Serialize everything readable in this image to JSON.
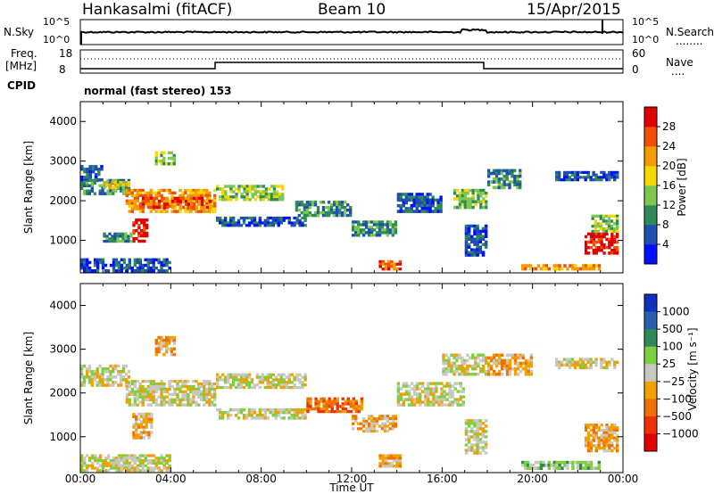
{
  "header": {
    "title": "Hankasalmi (fitACF)",
    "beam": "Beam 10",
    "date": "15/Apr/2015"
  },
  "strip_labels": {
    "nsky": "N.Sky",
    "nsearch": "N.Search",
    "freq_a": "Freq.",
    "freq_b": "[MHz]",
    "nave": "Nave",
    "cpid": "CPID",
    "cpid_text": "normal (fast stereo) 153",
    "dots": "........",
    "dots_short": "...."
  },
  "strip_ticks": {
    "nsky_left": [
      "10^5",
      "10^0"
    ],
    "nsky_right": [
      "10^5",
      "10^0"
    ],
    "freq_left": [
      "18",
      "8"
    ],
    "nave_right": [
      "60",
      "0"
    ]
  },
  "chart_data": [
    {
      "type": "heatmap",
      "panel": "power",
      "ylabel": "Slant Range [km]",
      "y_ticks": [
        1000,
        2000,
        3000,
        4000
      ],
      "ylim": [
        180,
        4500
      ],
      "colorbar_label": "Power [dB]",
      "colorbar_ticks": [
        "4",
        "8",
        "12",
        "16",
        "20",
        "24",
        "28"
      ],
      "colorbar_colors": [
        "#0010ff",
        "#1f4fb0",
        "#2e8b57",
        "#7ec850",
        "#f5d800",
        "#f59a00",
        "#f05000",
        "#e00000"
      ],
      "echo_bands": [
        {
          "x0": 0.0,
          "x1": 2.2,
          "y0": 2150,
          "y1": 2550,
          "level": 2
        },
        {
          "x0": 1.0,
          "x1": 2.2,
          "y0": 2300,
          "y1": 2500,
          "level": 4
        },
        {
          "x0": 2.0,
          "x1": 6.0,
          "y0": 1700,
          "y1": 2300,
          "level": 5
        },
        {
          "x0": 2.6,
          "x1": 5.8,
          "y0": 1800,
          "y1": 2100,
          "level": 6
        },
        {
          "x0": 2.3,
          "x1": 3.0,
          "y0": 950,
          "y1": 1550,
          "level": 7
        },
        {
          "x0": 1.0,
          "x1": 2.3,
          "y0": 950,
          "y1": 1200,
          "level": 2
        },
        {
          "x0": 0.0,
          "x1": 1.0,
          "y0": 2500,
          "y1": 2900,
          "level": 1
        },
        {
          "x0": 3.3,
          "x1": 4.2,
          "y0": 2900,
          "y1": 3250,
          "level": 3
        },
        {
          "x0": 6.0,
          "x1": 9.0,
          "y0": 2000,
          "y1": 2400,
          "level": 3
        },
        {
          "x0": 6.0,
          "x1": 10.0,
          "y0": 1350,
          "y1": 1600,
          "level": 1
        },
        {
          "x0": 9.5,
          "x1": 12.0,
          "y0": 1600,
          "y1": 2000,
          "level": 2
        },
        {
          "x0": 12.0,
          "x1": 14.0,
          "y0": 1100,
          "y1": 1500,
          "level": 2
        },
        {
          "x0": 13.2,
          "x1": 14.2,
          "y0": 250,
          "y1": 500,
          "level": 6
        },
        {
          "x0": 14.0,
          "x1": 16.0,
          "y0": 1700,
          "y1": 2200,
          "level": 1
        },
        {
          "x0": 16.5,
          "x1": 18.0,
          "y0": 1800,
          "y1": 2300,
          "level": 3
        },
        {
          "x0": 17.0,
          "x1": 18.0,
          "y0": 600,
          "y1": 1400,
          "level": 1
        },
        {
          "x0": 18.0,
          "x1": 19.5,
          "y0": 2300,
          "y1": 2800,
          "level": 2
        },
        {
          "x0": 19.5,
          "x1": 23.0,
          "y0": 250,
          "y1": 400,
          "level": 5
        },
        {
          "x0": 22.3,
          "x1": 23.8,
          "y0": 650,
          "y1": 1200,
          "level": 7
        },
        {
          "x0": 22.6,
          "x1": 23.8,
          "y0": 1200,
          "y1": 1650,
          "level": 3
        },
        {
          "x0": 21.0,
          "x1": 23.8,
          "y0": 2500,
          "y1": 2750,
          "level": 1
        },
        {
          "x0": 0.0,
          "x1": 4.0,
          "y0": 200,
          "y1": 550,
          "level": 1
        }
      ]
    },
    {
      "type": "heatmap",
      "panel": "velocity",
      "ylabel": "Slant Range [km]",
      "xlabel": "Time UT",
      "x_ticks": [
        "00:00",
        "04:00",
        "08:00",
        "12:00",
        "16:00",
        "20:00",
        "00:00"
      ],
      "y_ticks": [
        1000,
        2000,
        3000,
        4000
      ],
      "ylim": [
        180,
        4500
      ],
      "colorbar_label": "Velocity [m s⁻¹]",
      "colorbar_ticks": [
        "1000",
        "500",
        "100",
        "25",
        "−25",
        "−100",
        "−500",
        "−1000"
      ],
      "colorbar_colors": [
        "#1030c0",
        "#2a5fb0",
        "#2e8b57",
        "#7fd040",
        "#c8c8c0",
        "#f0a000",
        "#f07000",
        "#f03000",
        "#e00000"
      ],
      "echo_bands": [
        {
          "x0": 0.0,
          "x1": 2.2,
          "y0": 2150,
          "y1": 2650,
          "level": 4
        },
        {
          "x0": 2.0,
          "x1": 6.0,
          "y0": 1700,
          "y1": 2300,
          "level": 4
        },
        {
          "x0": 2.3,
          "x1": 3.2,
          "y0": 950,
          "y1": 1550,
          "level": 5
        },
        {
          "x0": 3.3,
          "x1": 4.2,
          "y0": 2850,
          "y1": 3300,
          "level": 5
        },
        {
          "x0": 6.0,
          "x1": 10.0,
          "y0": 2100,
          "y1": 2450,
          "level": 4
        },
        {
          "x0": 6.0,
          "x1": 10.0,
          "y0": 1400,
          "y1": 1650,
          "level": 4
        },
        {
          "x0": 10.0,
          "x1": 12.5,
          "y0": 1550,
          "y1": 1900,
          "level": 6
        },
        {
          "x0": 12.0,
          "x1": 14.0,
          "y0": 1100,
          "y1": 1500,
          "level": 5
        },
        {
          "x0": 13.2,
          "x1": 14.2,
          "y0": 300,
          "y1": 600,
          "level": 5
        },
        {
          "x0": 14.0,
          "x1": 17.0,
          "y0": 1700,
          "y1": 2250,
          "level": 4
        },
        {
          "x0": 16.0,
          "x1": 18.0,
          "y0": 2400,
          "y1": 2900,
          "level": 4
        },
        {
          "x0": 17.0,
          "x1": 18.0,
          "y0": 600,
          "y1": 1400,
          "level": 4
        },
        {
          "x0": 18.0,
          "x1": 20.0,
          "y0": 2400,
          "y1": 2900,
          "level": 5
        },
        {
          "x0": 19.5,
          "x1": 23.0,
          "y0": 250,
          "y1": 450,
          "level": 3
        },
        {
          "x0": 22.3,
          "x1": 23.8,
          "y0": 650,
          "y1": 1300,
          "level": 5
        },
        {
          "x0": 21.0,
          "x1": 23.8,
          "y0": 2550,
          "y1": 2800,
          "level": 4
        },
        {
          "x0": 0.0,
          "x1": 4.0,
          "y0": 200,
          "y1": 600,
          "level": 4
        }
      ]
    }
  ]
}
